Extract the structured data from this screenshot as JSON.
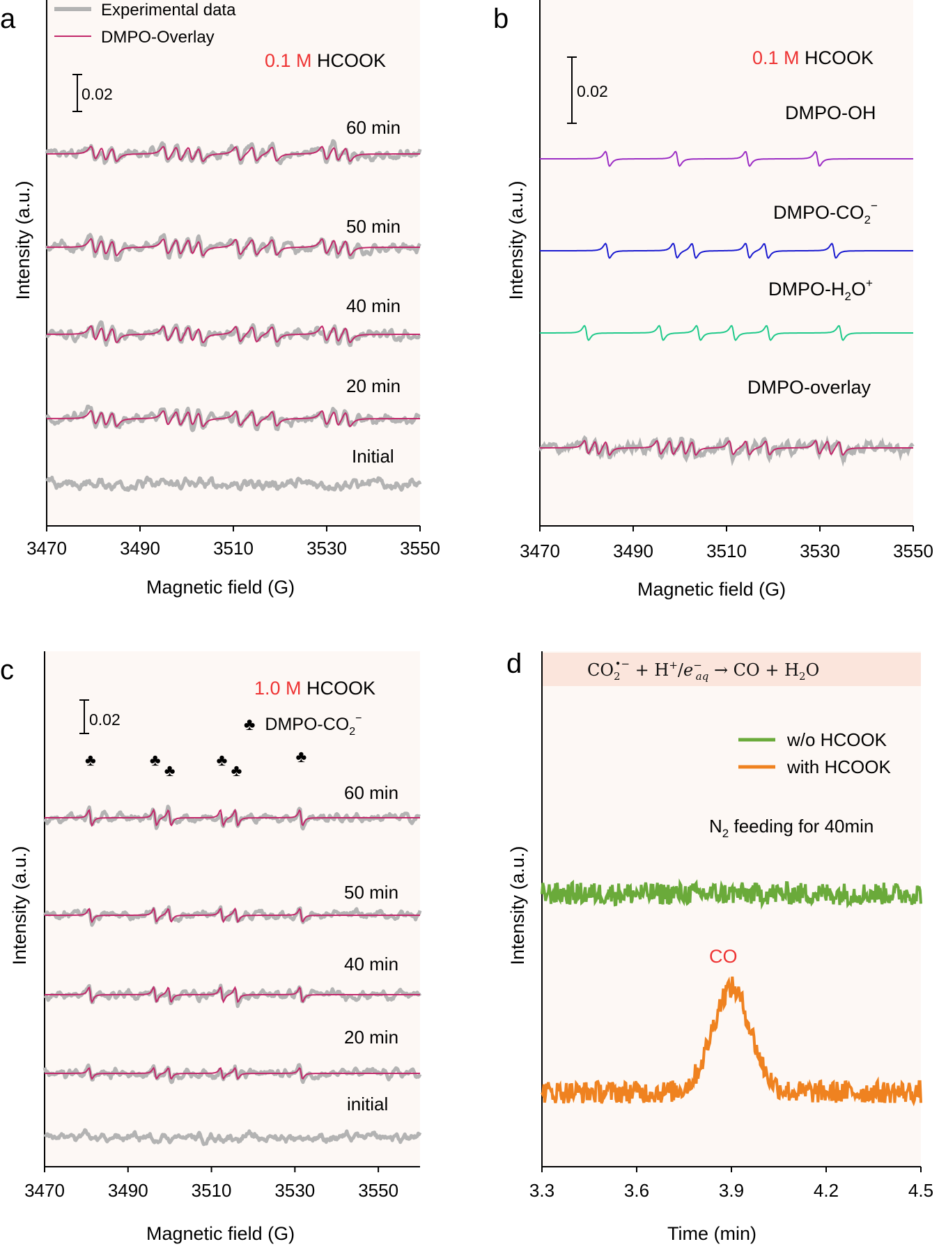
{
  "chart_data": [
    {
      "id": "a",
      "type": "line",
      "panel_label": "a",
      "xlabel": "Magnetic field (G)",
      "ylabel": "Intensity (a.u.)",
      "xlim": [
        3470,
        3550
      ],
      "xticks": [
        "3470",
        "3490",
        "3510",
        "3530",
        "3550"
      ],
      "legend": [
        "Experimental data",
        "DMPO-Overlay"
      ],
      "conc_value": "0.1 M",
      "conc_rest": " HCOOK",
      "scale_label": "0.02",
      "trace_labels": [
        "60 min",
        "50 min",
        "40 min",
        "20 min",
        "Initial"
      ],
      "fit_amplitudes": [
        1.0,
        1.12,
        1.1,
        1.05,
        0
      ],
      "colors": {
        "experimental": "#b3b3b3",
        "fit": "#c2276a",
        "accent": "#ee3333"
      }
    },
    {
      "id": "b",
      "type": "line",
      "panel_label": "b",
      "xlabel": "Magnetic field (G)",
      "ylabel": "Intensity (a.u.)",
      "xlim": [
        3470,
        3550
      ],
      "xticks": [
        "3470",
        "3490",
        "3510",
        "3530",
        "3550"
      ],
      "conc_value": "0.1 M",
      "conc_rest": " HCOOK",
      "scale_label": "0.02",
      "components": [
        {
          "name": "DMPO-OH",
          "label_main": "DMPO-OH",
          "sub": "",
          "sup": "",
          "tail": "",
          "color": "#9b2cc4",
          "lines_G": [
            3484.5,
            3499.5,
            3514.5,
            3529.5
          ]
        },
        {
          "name": "DMPO-CO2−",
          "label_main": "DMPO-CO",
          "sub": "2",
          "sup": "−",
          "tail": "",
          "color": "#1a1ad0",
          "lines_G": [
            3484.5,
            3499.0,
            3503.0,
            3514.5,
            3518.5,
            3533.0
          ]
        },
        {
          "name": "DMPO-H2O+",
          "label_main": "DMPO-H",
          "sub": "2",
          "sup": "+",
          "tail": "O",
          "color": "#1ec98a",
          "lines_G": [
            3480.0,
            3496.0,
            3504.0,
            3511.5,
            3519.0,
            3534.5
          ]
        },
        {
          "name": "DMPO-overlay",
          "label_main": "DMPO-overlay",
          "sub": "",
          "sup": "",
          "tail": "",
          "color": "#c2276a",
          "lines_G": []
        }
      ]
    },
    {
      "id": "c",
      "type": "line",
      "panel_label": "c",
      "xlabel": "Magnetic field (G)",
      "ylabel": "Intensity (a.u.)",
      "xlim": [
        3470,
        3560
      ],
      "xticks": [
        "3470",
        "3490",
        "3510",
        "3530",
        "3550"
      ],
      "conc_value": "1.0 M",
      "conc_rest": " HCOOK",
      "scale_label": "0.02",
      "marker_symbol": "♣",
      "marker_legend_main": "DMPO-CO",
      "marker_legend_sub": "2",
      "marker_legend_sup": "−",
      "marker_positions_G": [
        3481.0,
        3496.5,
        3500.0,
        3512.5,
        3516.0,
        3531.5
      ],
      "trace_labels": [
        "60 min",
        "50 min",
        "40 min",
        "20 min",
        "initial"
      ],
      "fit_amplitudes": [
        1.0,
        0.85,
        0.95,
        0.7,
        0
      ]
    },
    {
      "id": "d",
      "type": "line",
      "panel_label": "d",
      "xlabel": "Time (min)",
      "ylabel": "Intensity (a.u.)",
      "xlim": [
        3.3,
        4.5
      ],
      "xticks": [
        "3.3",
        "3.6",
        "3.9",
        "4.2",
        "4.5"
      ],
      "equation": {
        "reactant": "CO",
        "reactant_sub": "2",
        "reactant_sup": "•−",
        "plus1": " + H",
        "h_sup": "+",
        "slash": "/",
        "e": "e",
        "e_sup": "−",
        "e_sub": "aq",
        "arrow": " → CO  + H",
        "w_sub": "2",
        "w_tail": "O"
      },
      "annotation_main": "N",
      "annotation_sub": "2",
      "annotation_rest": " feeding for 40min",
      "peak_label": "CO",
      "peak_center_min": 3.9,
      "series": [
        {
          "name": "w/o HCOOK",
          "color": "#6aaa3a"
        },
        {
          "name": "with HCOOK",
          "color": "#ef8220"
        }
      ]
    }
  ]
}
